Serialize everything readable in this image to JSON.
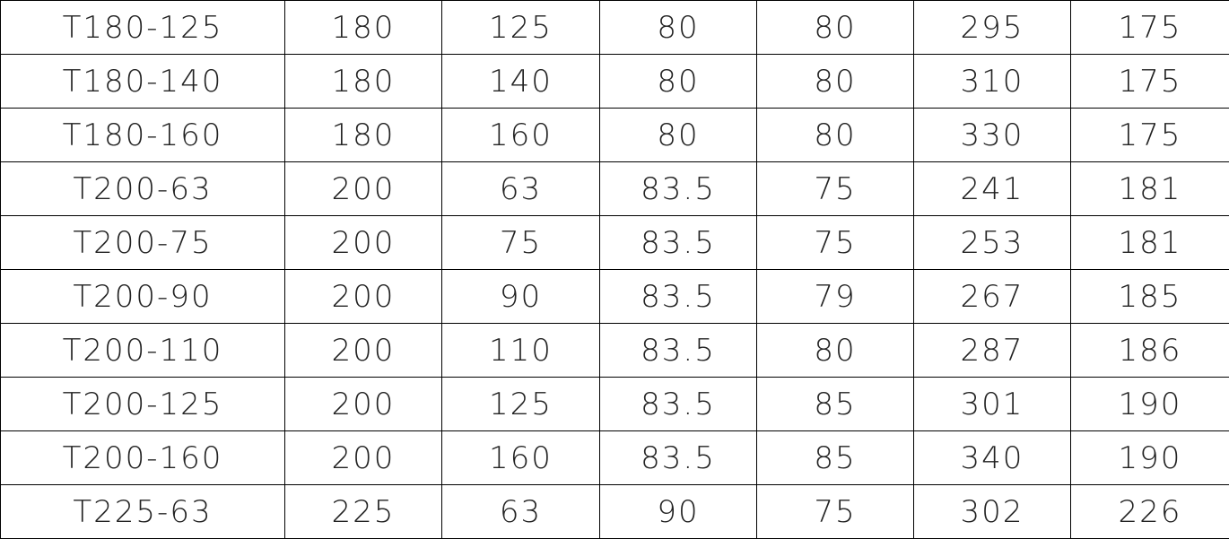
{
  "table": {
    "rows": [
      [
        "T180-125",
        "180",
        "125",
        "80",
        "80",
        "295",
        "175"
      ],
      [
        "T180-140",
        "180",
        "140",
        "80",
        "80",
        "310",
        "175"
      ],
      [
        "T180-160",
        "180",
        "160",
        "80",
        "80",
        "330",
        "175"
      ],
      [
        "T200-63",
        "200",
        "63",
        "83.5",
        "75",
        "241",
        "181"
      ],
      [
        "T200-75",
        "200",
        "75",
        "83.5",
        "75",
        "253",
        "181"
      ],
      [
        "T200-90",
        "200",
        "90",
        "83.5",
        "79",
        "267",
        "185"
      ],
      [
        "T200-110",
        "200",
        "110",
        "83.5",
        "80",
        "287",
        "186"
      ],
      [
        "T200-125",
        "200",
        "125",
        "83.5",
        "85",
        "301",
        "190"
      ],
      [
        "T200-160",
        "200",
        "160",
        "83.5",
        "85",
        "340",
        "190"
      ],
      [
        "T225-63",
        "225",
        "63",
        "90",
        "75",
        "302",
        "226"
      ]
    ]
  }
}
